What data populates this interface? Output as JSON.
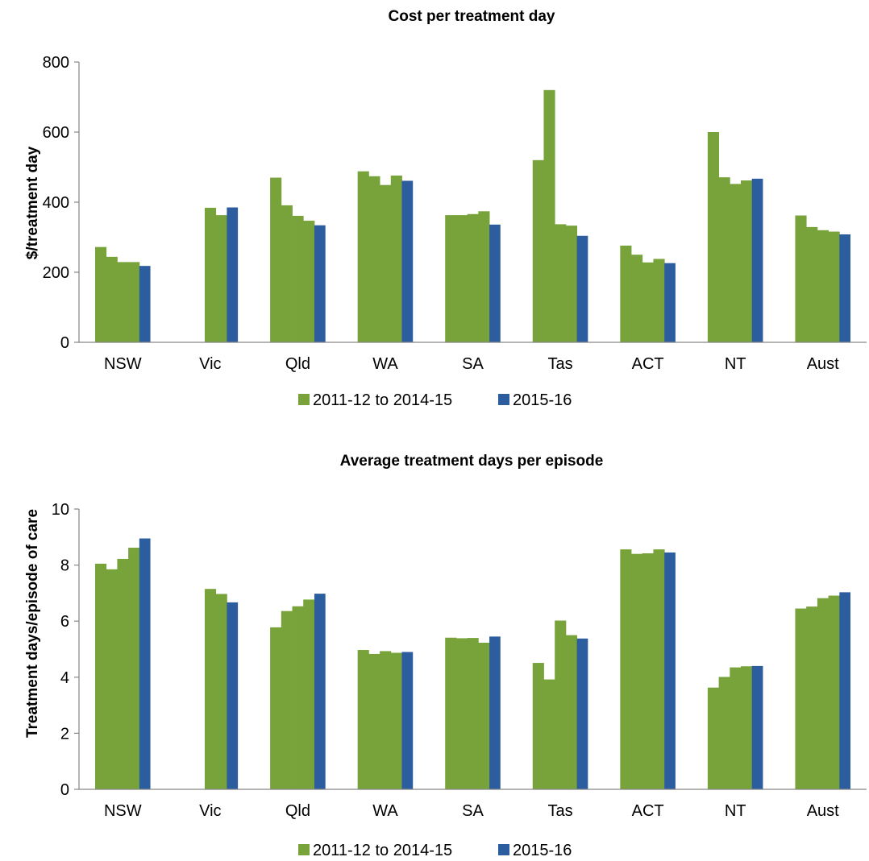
{
  "colors": {
    "historic": "#77a33a",
    "current": "#2c5d9f"
  },
  "chart_data": [
    {
      "type": "bar",
      "title": "Cost per treatment day",
      "ylabel": "$/treatment day",
      "xlabel": "",
      "ylim": [
        0,
        800
      ],
      "yticks": [
        "0",
        "200",
        "400",
        "600",
        "800"
      ],
      "categories": [
        "NSW",
        "Vic",
        "Qld",
        "WA",
        "SA",
        "Tas",
        "ACT",
        "NT",
        "Aust"
      ],
      "series": [
        {
          "name": "2011-12 to 2014-15",
          "color_key": "historic",
          "values": [
            [
              272,
              244,
              229,
              229
            ],
            [
              null,
              null,
              384,
              363
            ],
            [
              470,
              391,
              361,
              347
            ],
            [
              488,
              474,
              449,
              476
            ],
            [
              363,
              363,
              366,
              374
            ],
            [
              520,
              720,
              337,
              333
            ],
            [
              276,
              250,
              228,
              238
            ],
            [
              600,
              471,
              452,
              462
            ],
            [
              362,
              329,
              320,
              316
            ]
          ]
        },
        {
          "name": "2015-16",
          "color_key": "current",
          "values": [
            218,
            385,
            334,
            461,
            336,
            304,
            226,
            467,
            308
          ]
        }
      ],
      "legend": "bottom",
      "grid": false
    },
    {
      "type": "bar",
      "title": "Average treatment days per episode",
      "ylabel": "Treatment days/episode of care",
      "xlabel": "",
      "ylim": [
        0,
        10
      ],
      "yticks": [
        "0",
        "2",
        "4",
        "6",
        "8",
        "10"
      ],
      "categories": [
        "NSW",
        "Vic",
        "Qld",
        "WA",
        "SA",
        "Tas",
        "ACT",
        "NT",
        "Aust"
      ],
      "series": [
        {
          "name": "2011-12 to 2014-15",
          "color_key": "historic",
          "values": [
            [
              8.05,
              7.85,
              8.22,
              8.62
            ],
            [
              null,
              null,
              7.15,
              6.97
            ],
            [
              5.78,
              6.36,
              6.53,
              6.77
            ],
            [
              4.97,
              4.83,
              4.93,
              4.87
            ],
            [
              5.41,
              5.39,
              5.4,
              5.23
            ],
            [
              4.51,
              3.92,
              6.02,
              5.5
            ],
            [
              8.56,
              8.4,
              8.42,
              8.56
            ],
            [
              3.63,
              4.01,
              4.35,
              4.39
            ],
            [
              6.45,
              6.52,
              6.82,
              6.91
            ]
          ]
        },
        {
          "name": "2015-16",
          "color_key": "current",
          "values": [
            8.95,
            6.67,
            6.98,
            4.9,
            5.45,
            5.38,
            8.45,
            4.4,
            7.03
          ]
        }
      ],
      "legend": "bottom",
      "grid": false
    }
  ]
}
